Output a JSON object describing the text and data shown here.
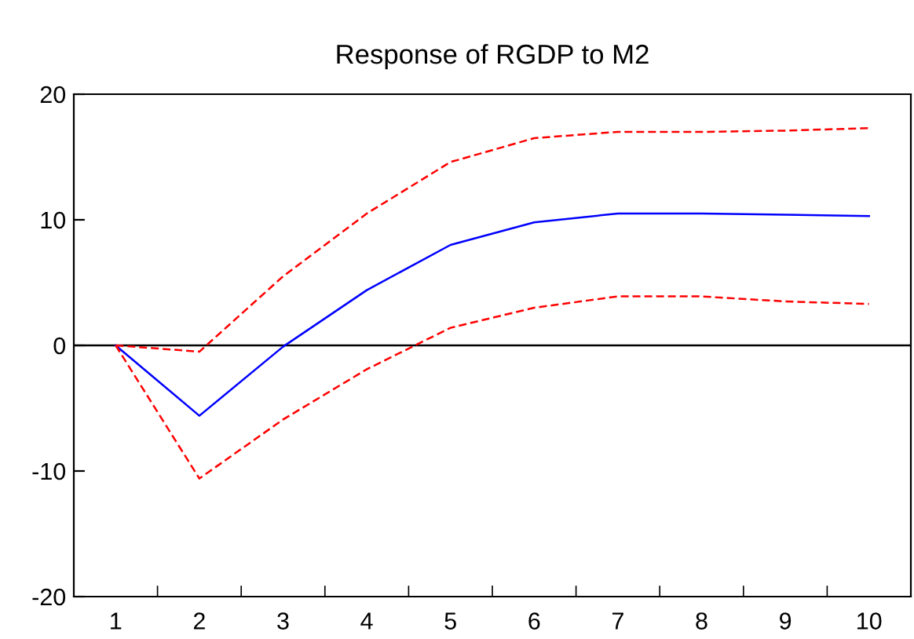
{
  "chart_data": {
    "type": "line",
    "title": "Response of RGDP to M2",
    "categories": [
      "1",
      "2",
      "3",
      "4",
      "5",
      "6",
      "7",
      "8",
      "9",
      "10"
    ],
    "series": [
      {
        "color": "#0000ff",
        "line_style": "solid",
        "values": [
          0,
          -5.6,
          -0.1,
          4.4,
          8.0,
          9.8,
          10.5,
          10.5,
          10.4,
          10.3
        ]
      },
      {
        "color": "#ff0000",
        "line_style": "dashed",
        "values": [
          0,
          -0.5,
          5.5,
          10.5,
          14.6,
          16.5,
          17.0,
          17.0,
          17.1,
          17.3
        ]
      },
      {
        "color": "#ff0000",
        "line_style": "dashed",
        "values": [
          0,
          -10.6,
          -5.9,
          -1.9,
          1.4,
          3.0,
          3.9,
          3.9,
          3.5,
          3.3
        ]
      }
    ],
    "ylim": [
      -20,
      20
    ],
    "yticks": [
      -20,
      -10,
      0,
      10,
      20
    ],
    "ref_lines": [
      {
        "axis": "y",
        "value": 0,
        "color": "#000000",
        "line_style": "solid"
      }
    ],
    "grid": false,
    "legend": false,
    "marker": "none"
  }
}
